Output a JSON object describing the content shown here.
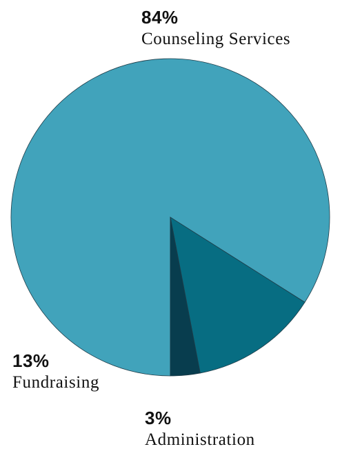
{
  "chart_data": {
    "type": "pie",
    "title": "",
    "slices": [
      {
        "label": "Counseling Services",
        "value": 84,
        "display": "84%",
        "color": "#41a3bb"
      },
      {
        "label": "Fundraising",
        "value": 13,
        "display": "13%",
        "color": "#076d82"
      },
      {
        "label": "Administration",
        "value": 3,
        "display": "3%",
        "color": "#083d4e"
      }
    ]
  }
}
